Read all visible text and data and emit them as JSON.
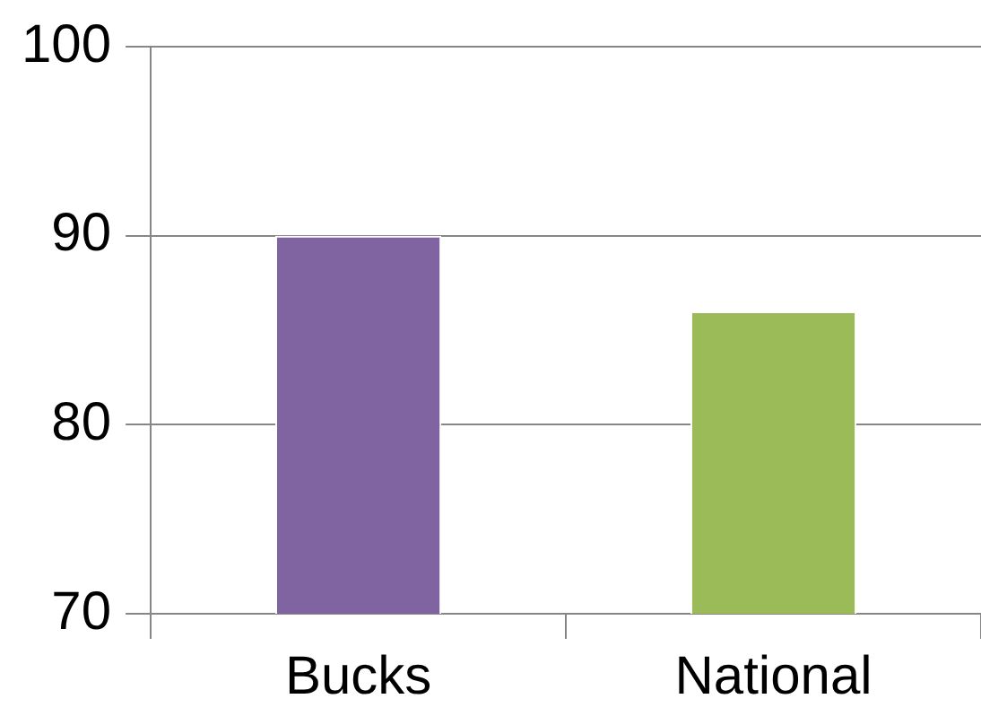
{
  "chart_data": {
    "type": "bar",
    "categories": [
      "Bucks",
      "National"
    ],
    "values": [
      90,
      86
    ],
    "colors": [
      "#8064a2",
      "#9bbb59"
    ],
    "ylim": [
      70,
      100
    ],
    "yticks": [
      70,
      80,
      90,
      100
    ],
    "grid": "y",
    "legend": false
  }
}
